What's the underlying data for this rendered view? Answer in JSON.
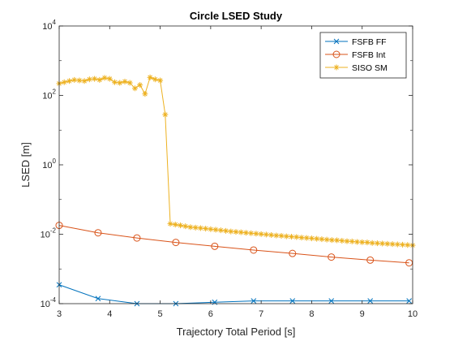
{
  "chart_data": {
    "type": "line",
    "title": "Circle LSED Study",
    "xlabel": "Trajectory Total Period [s]",
    "ylabel": "LSED [m]",
    "xlim": [
      3,
      10
    ],
    "ylim": [
      0.0001,
      10000
    ],
    "yscale": "log",
    "x_ticks": [
      3,
      4,
      5,
      6,
      7,
      8,
      9,
      10
    ],
    "x_tick_labels": [
      "3",
      "4",
      "5",
      "6",
      "7",
      "8",
      "9",
      "10"
    ],
    "y_ticks": [
      0.0001,
      0.01,
      1,
      100,
      10000
    ],
    "y_tick_labels": [
      {
        "base": "10",
        "exp": "-4"
      },
      {
        "base": "10",
        "exp": "-2"
      },
      {
        "base": "10",
        "exp": "0"
      },
      {
        "base": "10",
        "exp": "2"
      },
      {
        "base": "10",
        "exp": "4"
      }
    ],
    "grid": false,
    "legend_position": "top-right",
    "series": [
      {
        "name": "FSFB FF",
        "color": "#0072BD",
        "marker": "x",
        "x": [
          3.0,
          3.77,
          4.54,
          5.31,
          6.08,
          6.85,
          7.62,
          8.39,
          9.16,
          9.93
        ],
        "y": [
          0.00035,
          0.00014,
          0.0001,
          0.0001,
          0.00011,
          0.00012,
          0.00012,
          0.00012,
          0.00012,
          0.00012
        ]
      },
      {
        "name": "FSFB Int",
        "color": "#D95319",
        "marker": "o",
        "x": [
          3.0,
          3.77,
          4.54,
          5.31,
          6.08,
          6.85,
          7.62,
          8.39,
          9.16,
          9.93
        ],
        "y": [
          0.018,
          0.011,
          0.0078,
          0.0058,
          0.0045,
          0.0035,
          0.0028,
          0.0022,
          0.0018,
          0.0015
        ]
      },
      {
        "name": "SISO SM",
        "color": "#EDB120",
        "marker": "*",
        "x": [
          3.0,
          3.1,
          3.2,
          3.3,
          3.4,
          3.5,
          3.6,
          3.7,
          3.8,
          3.9,
          4.0,
          4.1,
          4.2,
          4.3,
          4.4,
          4.5,
          4.6,
          4.7,
          4.8,
          4.9,
          5.0,
          5.1,
          5.2,
          5.3,
          5.4,
          5.5,
          5.6,
          5.7,
          5.8,
          5.9,
          6.0,
          6.1,
          6.2,
          6.3,
          6.4,
          6.5,
          6.6,
          6.7,
          6.8,
          6.9,
          7.0,
          7.1,
          7.2,
          7.3,
          7.4,
          7.5,
          7.6,
          7.7,
          7.8,
          7.9,
          8.0,
          8.1,
          8.2,
          8.3,
          8.4,
          8.5,
          8.6,
          8.7,
          8.8,
          8.9,
          9.0,
          9.1,
          9.2,
          9.3,
          9.4,
          9.5,
          9.6,
          9.7,
          9.8,
          9.9,
          10.0
        ],
        "y": [
          220,
          240,
          260,
          280,
          270,
          260,
          290,
          300,
          280,
          320,
          300,
          240,
          230,
          250,
          230,
          160,
          200,
          110,
          330,
          290,
          270,
          28,
          0.02,
          0.019,
          0.018,
          0.017,
          0.016,
          0.0155,
          0.015,
          0.0145,
          0.014,
          0.0135,
          0.013,
          0.0125,
          0.012,
          0.0117,
          0.0114,
          0.011,
          0.0107,
          0.0104,
          0.0101,
          0.0098,
          0.0095,
          0.0092,
          0.009,
          0.0087,
          0.0085,
          0.0083,
          0.008,
          0.0078,
          0.0076,
          0.0074,
          0.0072,
          0.007,
          0.0068,
          0.0067,
          0.0065,
          0.0063,
          0.0062,
          0.006,
          0.0059,
          0.0058,
          0.0056,
          0.0055,
          0.0054,
          0.0053,
          0.0052,
          0.0051,
          0.005,
          0.0049,
          0.0048
        ]
      }
    ]
  }
}
